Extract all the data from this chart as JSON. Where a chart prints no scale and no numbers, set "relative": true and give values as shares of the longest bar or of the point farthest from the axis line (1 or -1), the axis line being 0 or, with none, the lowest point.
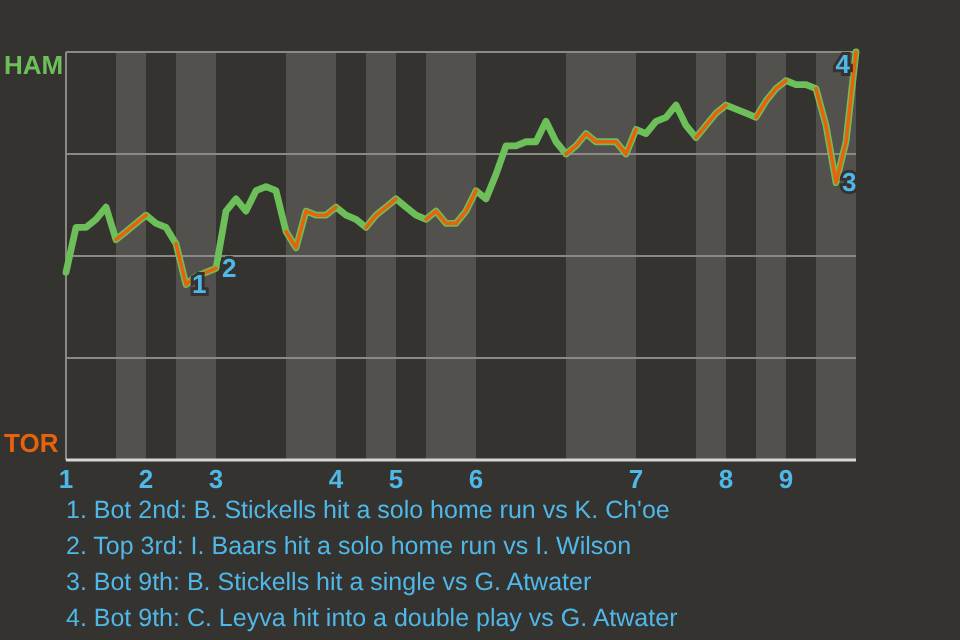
{
  "chart_data": {
    "type": "line",
    "relative": true,
    "grid": true,
    "categories": [
      "1",
      null,
      null,
      null,
      null,
      null,
      null,
      null,
      "2",
      null,
      null,
      null,
      null,
      null,
      null,
      "3",
      null,
      null,
      null,
      null,
      null,
      null,
      null,
      null,
      null,
      null,
      null,
      "4",
      null,
      null,
      null,
      null,
      null,
      "5",
      null,
      null,
      null,
      null,
      null,
      null,
      null,
      "6",
      null,
      null,
      null,
      null,
      null,
      null,
      null,
      null,
      null,
      null,
      null,
      null,
      null,
      null,
      null,
      "7",
      null,
      null,
      null,
      null,
      null,
      null,
      null,
      null,
      "8",
      null,
      null,
      null,
      null,
      null,
      "9",
      null,
      null,
      null,
      null,
      null,
      null,
      null
    ],
    "series": [
      {
        "name": "HAM",
        "color": "#6dbf5a",
        "values": [
          0.46,
          0.57,
          0.57,
          0.59,
          0.62,
          0.54,
          0.56,
          0.58,
          0.6,
          0.58,
          0.57,
          0.53,
          0.43,
          0.45,
          0.46,
          0.47,
          0.61,
          0.64,
          0.61,
          0.66,
          0.67,
          0.66,
          0.56,
          0.52,
          0.61,
          0.6,
          0.6,
          0.62,
          0.6,
          0.59,
          0.57,
          0.6,
          0.62,
          0.64,
          0.62,
          0.6,
          0.59,
          0.61,
          0.58,
          0.58,
          0.61,
          0.66,
          0.64,
          0.7,
          0.77,
          0.77,
          0.78,
          0.78,
          0.83,
          0.78,
          0.75,
          0.77,
          0.8,
          0.78,
          0.78,
          0.78,
          0.75,
          0.81,
          0.8,
          0.83,
          0.84,
          0.87,
          0.82,
          0.79,
          0.82,
          0.85,
          0.87,
          0.86,
          0.85,
          0.84,
          0.88,
          0.91,
          0.93,
          0.92,
          0.92,
          0.91,
          0.82,
          0.68,
          0.78,
          1
        ]
      },
      {
        "name": "TOR",
        "color": "#e8620c",
        "values": [
          null,
          null,
          null,
          null,
          null,
          0.54,
          0.56,
          0.58,
          0.6,
          null,
          null,
          0.53,
          0.43,
          0.45,
          0.46,
          0.47,
          null,
          null,
          null,
          null,
          null,
          null,
          0.56,
          0.52,
          0.61,
          0.6,
          0.6,
          0.62,
          null,
          null,
          0.57,
          0.6,
          0.62,
          0.64,
          null,
          null,
          0.59,
          0.61,
          0.58,
          0.58,
          0.61,
          0.66,
          null,
          null,
          null,
          null,
          null,
          null,
          null,
          null,
          0.75,
          0.77,
          0.8,
          0.78,
          0.78,
          0.78,
          0.75,
          0.81,
          null,
          null,
          null,
          null,
          null,
          0.79,
          0.82,
          0.85,
          0.87,
          null,
          null,
          0.84,
          0.88,
          0.91,
          0.93,
          null,
          null,
          0.91,
          0.82,
          0.68,
          0.78,
          1
        ]
      }
    ],
    "annotations": [
      {
        "text": "1",
        "y": 0.43
      },
      {
        "text": "2",
        "y": 0.47
      },
      {
        "text": "3",
        "y": 0.68
      },
      {
        "text": "4",
        "y": 1
      },
      "1. Bot 2nd: B. Stickells hit a solo home run vs K. Ch'oe",
      "2. Top 3rd: I. Baars hit a solo home run vs I. Wilson",
      "3. Bot 9th: B. Stickells hit a single vs G. Atwater",
      "4. Bot 9th: C. Leyva hit into a double play vs G. Atwater"
    ]
  }
}
